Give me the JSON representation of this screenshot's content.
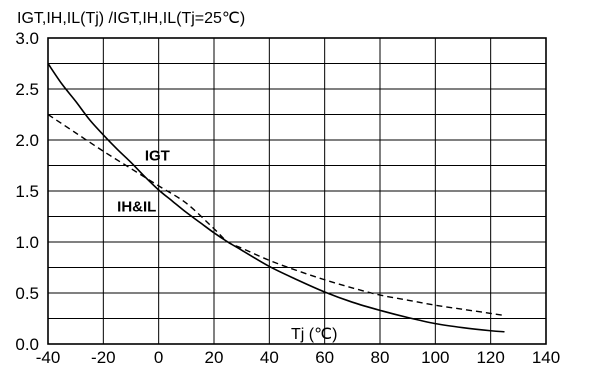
{
  "chart_data": {
    "type": "line",
    "title": "IGT,IH,IL(Tj) /IGT,IH,IL(Tj=25℃)",
    "xlabel": "Tj (℃)",
    "ylabel": "",
    "xlim": [
      -40,
      140
    ],
    "ylim": [
      0,
      3.0
    ],
    "xticks": [
      -40,
      -20,
      0,
      20,
      40,
      60,
      80,
      100,
      120,
      140
    ],
    "yticks": [
      0.0,
      0.5,
      1.0,
      1.5,
      2.0,
      2.5,
      3.0
    ],
    "xtick_labels": [
      "-40",
      "-20",
      "0",
      "20",
      "40",
      "60",
      "80",
      "100",
      "120",
      "140"
    ],
    "ytick_labels": [
      "0.0",
      "0.5",
      "1.0",
      "1.5",
      "2.0",
      "2.5",
      "3.0"
    ],
    "grid": true,
    "series": [
      {
        "name": "IGT",
        "style": "solid",
        "x": [
          -40,
          -35,
          -30,
          -25,
          -20,
          -15,
          -10,
          -5,
          0,
          5,
          10,
          15,
          20,
          25,
          30,
          40,
          50,
          60,
          70,
          80,
          90,
          100,
          110,
          120,
          125
        ],
        "y": [
          2.75,
          2.55,
          2.38,
          2.2,
          2.05,
          1.91,
          1.78,
          1.64,
          1.51,
          1.4,
          1.29,
          1.19,
          1.09,
          1.0,
          0.92,
          0.76,
          0.63,
          0.51,
          0.41,
          0.33,
          0.26,
          0.2,
          0.16,
          0.13,
          0.12
        ]
      },
      {
        "name": "IH&IL",
        "style": "dashed",
        "x": [
          -40,
          -30,
          -20,
          -10,
          0,
          10,
          20,
          25,
          30,
          40,
          50,
          60,
          70,
          80,
          90,
          100,
          110,
          120,
          125
        ],
        "y": [
          2.25,
          2.07,
          1.89,
          1.72,
          1.55,
          1.38,
          1.13,
          1.0,
          0.94,
          0.82,
          0.72,
          0.63,
          0.55,
          0.48,
          0.43,
          0.38,
          0.34,
          0.3,
          0.28
        ]
      }
    ],
    "annotations": [
      {
        "text": "IGT",
        "x": -5,
        "y": 1.8
      },
      {
        "text": "IH&IL",
        "x": -15,
        "y": 1.3
      }
    ]
  }
}
